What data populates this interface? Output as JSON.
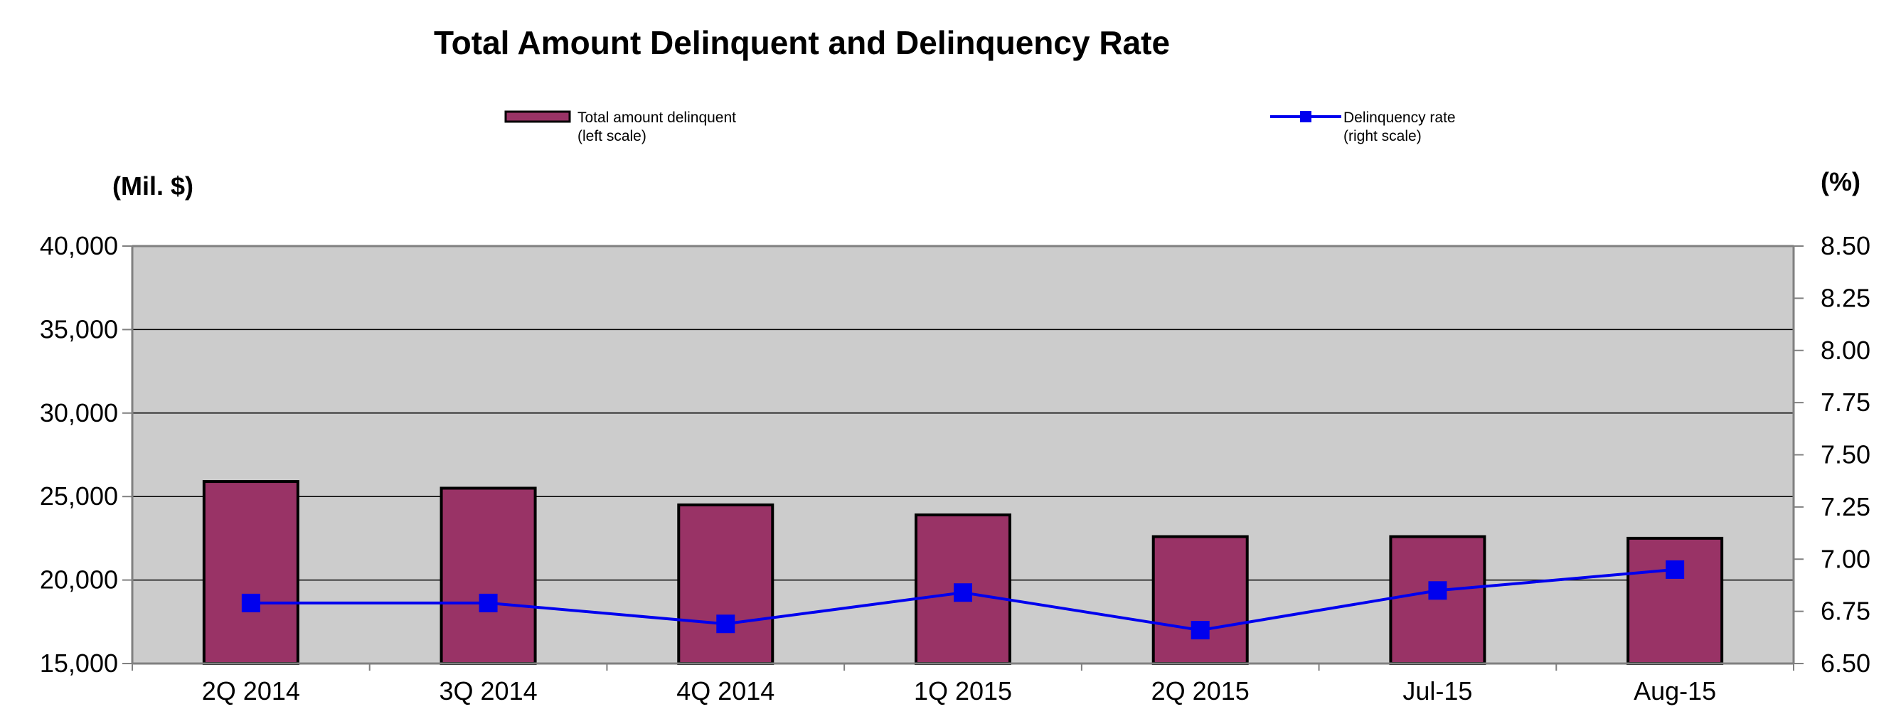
{
  "chart_data": {
    "type": "bar",
    "title": "Total Amount Delinquent and Delinquency Rate",
    "y_left_label": "(Mil. $)",
    "y_right_label": "(%)",
    "categories": [
      "2Q 2014",
      "3Q 2014",
      "4Q 2014",
      "1Q 2015",
      "2Q 2015",
      "Jul-15",
      "Aug-15"
    ],
    "y_left_ticks": [
      "15,000",
      "20,000",
      "25,000",
      "30,000",
      "35,000",
      "40,000"
    ],
    "y_right_ticks": [
      "6.50",
      "6.75",
      "7.00",
      "7.25",
      "7.50",
      "7.75",
      "8.00",
      "8.25",
      "8.50"
    ],
    "ylim_left": [
      15000,
      40000
    ],
    "ylim_right": [
      6.5,
      8.5
    ],
    "grid": true,
    "legend_position": "top",
    "legend": [
      {
        "line1": "Total amount delinquent",
        "line2": "(left scale)"
      },
      {
        "line1": "Delinquency rate",
        "line2": "(right scale)"
      }
    ],
    "series": [
      {
        "name": "Total amount delinquent",
        "axis": "left",
        "type": "bar",
        "color": "#993366",
        "values": [
          25900,
          25500,
          24500,
          23900,
          22600,
          22600,
          22500
        ]
      },
      {
        "name": "Delinquency rate",
        "axis": "right",
        "type": "line",
        "color": "#0000ee",
        "values": [
          6.79,
          6.79,
          6.69,
          6.84,
          6.66,
          6.85,
          6.95
        ]
      }
    ],
    "plot_background": "#cccccc"
  }
}
